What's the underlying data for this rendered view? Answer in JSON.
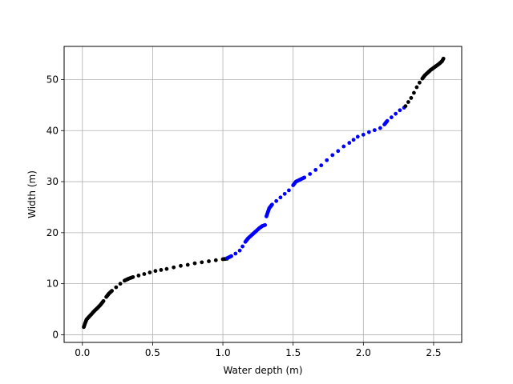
{
  "chart_data": {
    "type": "scatter",
    "title": "",
    "xlabel": "Water depth (m)",
    "ylabel": "Width (m)",
    "xlim": [
      -0.13,
      2.7
    ],
    "ylim": [
      -1.5,
      56.5
    ],
    "xticks": [
      0,
      0.5,
      1,
      1.5,
      2,
      2.5
    ],
    "xtick_labels": [
      "0.0",
      "0.5",
      "1.0",
      "1.5",
      "2.0",
      "2.5"
    ],
    "yticks": [
      0,
      10,
      20,
      30,
      40,
      50
    ],
    "ytick_labels": [
      "0",
      "10",
      "20",
      "30",
      "40",
      "50"
    ],
    "grid": true,
    "colors": {
      "black": "#000000",
      "blue": "#0000ff",
      "grid": "#b0b0b0"
    },
    "series": [
      {
        "color": "#000000",
        "x": [
          0.01,
          0.02,
          0.03,
          0.05,
          0.07,
          0.09,
          0.11,
          0.13,
          0.15,
          0.17,
          0.19,
          0.21,
          0.24,
          0.27,
          0.3,
          0.33,
          0.36,
          0.4,
          0.44,
          0.48,
          0.52,
          0.56,
          0.6,
          0.65,
          0.7,
          0.75,
          0.8,
          0.85,
          0.9,
          0.95,
          1.0,
          1.03
        ],
        "y": [
          1.5,
          2.3,
          3.0,
          3.6,
          4.2,
          4.8,
          5.3,
          5.9,
          6.6,
          7.4,
          8.1,
          8.6,
          9.3,
          10.0,
          10.6,
          11.0,
          11.3,
          11.6,
          11.9,
          12.2,
          12.5,
          12.7,
          12.9,
          13.2,
          13.5,
          13.7,
          14.0,
          14.2,
          14.4,
          14.6,
          14.8,
          14.9
        ]
      },
      {
        "color": "#0000ff",
        "x": [
          1.03,
          1.06,
          1.09,
          1.12,
          1.14,
          1.16,
          1.18,
          1.2,
          1.22,
          1.24,
          1.26,
          1.28,
          1.3,
          1.31,
          1.32,
          1.33,
          1.35,
          1.38,
          1.41,
          1.44,
          1.47,
          1.5,
          1.52,
          1.55,
          1.58,
          1.62,
          1.66,
          1.7,
          1.74,
          1.78,
          1.82,
          1.86,
          1.9,
          1.93,
          1.96,
          2.0,
          2.04,
          2.08,
          2.12,
          2.15,
          2.17,
          2.2,
          2.23,
          2.26,
          2.29
        ],
        "y": [
          15.0,
          15.4,
          15.9,
          16.5,
          17.3,
          18.2,
          18.9,
          19.4,
          19.9,
          20.4,
          20.9,
          21.3,
          21.5,
          23.2,
          24.0,
          24.8,
          25.5,
          26.2,
          26.9,
          27.6,
          28.3,
          29.3,
          30.0,
          30.4,
          30.8,
          31.5,
          32.3,
          33.2,
          34.2,
          35.2,
          36.0,
          36.9,
          37.6,
          38.2,
          38.8,
          39.2,
          39.7,
          40.1,
          40.5,
          41.2,
          41.9,
          42.6,
          43.3,
          44.0,
          44.5
        ]
      },
      {
        "color": "#000000",
        "x": [
          2.3,
          2.32,
          2.34,
          2.36,
          2.38,
          2.4,
          2.42,
          2.44,
          2.46,
          2.48,
          2.5,
          2.52,
          2.54,
          2.56,
          2.57
        ],
        "y": [
          44.8,
          45.6,
          46.4,
          47.4,
          48.5,
          49.4,
          50.2,
          50.9,
          51.4,
          51.9,
          52.3,
          52.7,
          53.1,
          53.6,
          54.1
        ]
      }
    ]
  }
}
